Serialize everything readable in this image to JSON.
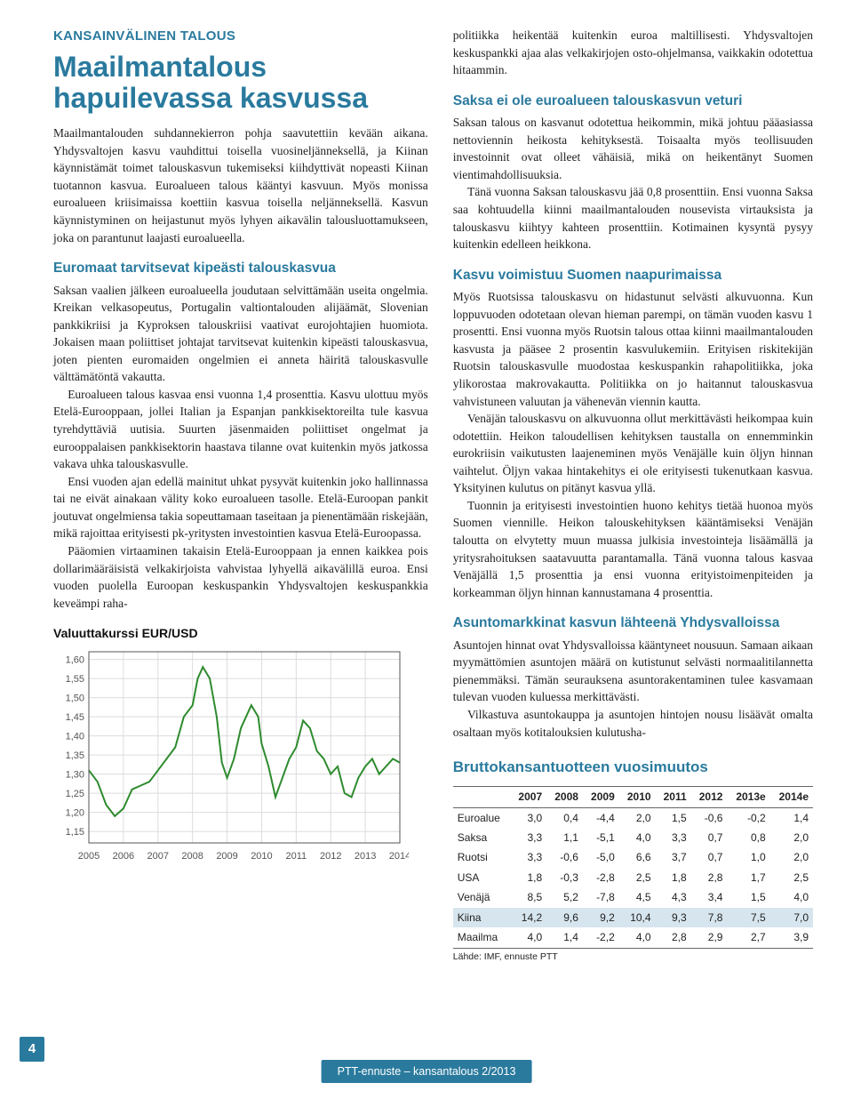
{
  "section_label": "KANSAINVÄLINEN TALOUS",
  "main_title_line1": "Maailmantalous",
  "main_title_line2": "hapuilevassa kasvussa",
  "left": {
    "p1": "Maailmantalouden suhdannekierron pohja saavutettiin kevään aikana. Yhdysvaltojen kasvu vauhdittui toisella vuosineljänneksellä, ja Kiinan käynnistämät toimet talouskasvun tukemiseksi kiihdyttivät nopeasti Kiinan tuotannon kasvua. Euroalueen talous kääntyi kasvuun. Myös monissa euroalueen kriisimaissa koettiin kasvua toisella neljänneksellä. Kasvun käynnistyminen on heijastunut myös lyhyen aikavälin talousluottamukseen, joka on parantunut laajasti euroalueella.",
    "h2_1": "Euromaat tarvitsevat kipeästi talouskasvua",
    "p2": "Saksan vaalien jälkeen euroalueella joudutaan selvittämään useita ongelmia. Kreikan velkasopeutus, Portugalin valtiontalouden alijäämät, Slovenian pankkikriisi ja Kyproksen talouskriisi vaativat eurojohtajien huomiota. Jokaisen maan poliittiset johtajat tarvitsevat kuitenkin kipeästi talouskasvua, joten pienten euromaiden ongelmien ei anneta häiritä talouskasvulle välttämätöntä vakautta.",
    "p3": "Euroalueen talous kasvaa ensi vuonna 1,4 prosenttia. Kasvu ulottuu myös Etelä-Eurooppaan, jollei Italian ja Espanjan pankkisektoreilta tule kasvua tyrehdyttäviä uutisia. Suurten jäsenmaiden poliittiset ongelmat ja eurooppalaisen pankkisektorin haastava tilanne ovat kuitenkin myös jatkossa vakava uhka talouskasvulle.",
    "p4": "Ensi vuoden ajan edellä mainitut uhkat pysyvät kuitenkin joko hallinnassa tai ne eivät ainakaan välity koko euroalueen tasolle. Etelä-Euroopan pankit joutuvat ongelmiensa takia sopeuttamaan taseitaan ja pienentämään riskejään, mikä rajoittaa erityisesti pk-yritysten investointien kasvua Etelä-Euroopassa.",
    "p5": "Pääomien virtaaminen takaisin Etelä-Eurooppaan ja ennen kaikkea pois dollarimääräisistä velkakirjoista vahvistaa lyhyellä aikavälillä euroa. Ensi vuoden puolella Euroopan keskuspankin Yhdysvaltojen keskuspankkia keveämpi raha-"
  },
  "right": {
    "p0": "politiikka heikentää kuitenkin euroa maltillisesti. Yhdysvaltojen keskuspankki ajaa alas velkakirjojen osto-ohjelmansa, vaikkakin odotettua hitaammin.",
    "h2_1": "Saksa ei ole euroalueen talouskasvun veturi",
    "p1": "Saksan talous on kasvanut odotettua heikommin, mikä johtuu pääasiassa nettoviennin heikosta kehityksestä. Toisaalta myös teollisuuden investoinnit ovat olleet vähäisiä, mikä on heikentänyt Suomen vientimahdollisuuksia.",
    "p2": "Tänä vuonna Saksan talouskasvu jää 0,8 prosenttiin. Ensi vuonna Saksa saa kohtuudella kiinni maailmantalouden nousevista virtauksista ja talouskasvu kiihtyy kahteen prosenttiin. Kotimainen kysyntä pysyy kuitenkin edelleen heikkona.",
    "h2_2": "Kasvu voimistuu Suomen naapurimaissa",
    "p3": "Myös Ruotsissa talouskasvu on hidastunut selvästi alkuvuonna. Kun loppuvuoden odotetaan olevan hieman parempi, on tämän vuoden kasvu 1 prosentti. Ensi vuonna myös Ruotsin talous ottaa kiinni maailmantalouden kasvusta ja pääsee 2 prosentin kasvulukemiin. Erityisen riskitekijän Ruotsin talouskasvulle muodostaa keskuspankin rahapolitiikka, joka ylikorostaa makrovakautta. Politiikka on jo haitannut talouskasvua vahvistuneen valuutan ja vähenevän viennin kautta.",
    "p4": "Venäjän talouskasvu on alkuvuonna ollut merkittävästi heikompaa kuin odotettiin. Heikon taloudellisen kehityksen taustalla on ennemminkin eurokriisin vaikutusten laajeneminen myös Venäjälle kuin öljyn hinnan vaihtelut. Öljyn vakaa hintakehitys ei ole erityisesti tukenutkaan kasvua. Yksityinen kulutus on pitänyt kasvua yllä.",
    "p5": "Tuonnin ja erityisesti investointien huono kehitys tietää huonoa myös Suomen viennille. Heikon talouskehityksen kääntämiseksi Venäjän taloutta on elvytetty muun muassa julkisia investointeja lisäämällä ja yritysrahoituksen saatavuutta parantamalla. Tänä vuonna talous kasvaa Venäjällä 1,5 prosenttia ja ensi vuonna erityistoimenpiteiden ja korkeamman öljyn hinnan kannustamana 4 prosenttia.",
    "h2_3": "Asuntomarkkinat kasvun lähteenä Yhdysvalloissa",
    "p6": "Asuntojen hinnat ovat Yhdysvalloissa kääntyneet nousuun. Samaan aikaan myymättömien asuntojen määrä on kutistunut selvästi normaalitilannetta pienemmäksi. Tämän seurauksena asuntorakentaminen tulee kasvamaan tulevan vuoden kuluessa merkittävästi.",
    "p7": "Vilkastuva asuntokauppa ja asuntojen hintojen nousu lisäävät omalta osaltaan myös kotitalouksien kulutusha-"
  },
  "chart": {
    "title": "Valuuttakurssi EUR/USD",
    "type": "line",
    "xlabels": [
      "2005",
      "2006",
      "2007",
      "2008",
      "2009",
      "2010",
      "2011",
      "2012",
      "2013",
      "2014"
    ],
    "ylim": [
      1.12,
      1.62
    ],
    "yticks": [
      1.15,
      1.2,
      1.25,
      1.3,
      1.35,
      1.4,
      1.45,
      1.5,
      1.55,
      1.6
    ],
    "line_color": "#2e8b2e",
    "line_width": 2,
    "grid_color": "#dcdcdc",
    "tick_color": "#555555",
    "background_color": "#ffffff",
    "label_fontsize": 11,
    "title_fontsize": 14,
    "series": [
      {
        "x": 0.0,
        "y": 1.31
      },
      {
        "x": 0.25,
        "y": 1.28
      },
      {
        "x": 0.5,
        "y": 1.22
      },
      {
        "x": 0.75,
        "y": 1.19
      },
      {
        "x": 1.0,
        "y": 1.21
      },
      {
        "x": 1.25,
        "y": 1.26
      },
      {
        "x": 1.5,
        "y": 1.27
      },
      {
        "x": 1.75,
        "y": 1.28
      },
      {
        "x": 2.0,
        "y": 1.31
      },
      {
        "x": 2.25,
        "y": 1.34
      },
      {
        "x": 2.5,
        "y": 1.37
      },
      {
        "x": 2.75,
        "y": 1.45
      },
      {
        "x": 3.0,
        "y": 1.48
      },
      {
        "x": 3.15,
        "y": 1.55
      },
      {
        "x": 3.3,
        "y": 1.58
      },
      {
        "x": 3.5,
        "y": 1.55
      },
      {
        "x": 3.7,
        "y": 1.45
      },
      {
        "x": 3.85,
        "y": 1.33
      },
      {
        "x": 4.0,
        "y": 1.29
      },
      {
        "x": 4.2,
        "y": 1.34
      },
      {
        "x": 4.4,
        "y": 1.42
      },
      {
        "x": 4.7,
        "y": 1.48
      },
      {
        "x": 4.9,
        "y": 1.45
      },
      {
        "x": 5.0,
        "y": 1.38
      },
      {
        "x": 5.2,
        "y": 1.32
      },
      {
        "x": 5.4,
        "y": 1.24
      },
      {
        "x": 5.6,
        "y": 1.29
      },
      {
        "x": 5.8,
        "y": 1.34
      },
      {
        "x": 6.0,
        "y": 1.37
      },
      {
        "x": 6.2,
        "y": 1.44
      },
      {
        "x": 6.4,
        "y": 1.42
      },
      {
        "x": 6.6,
        "y": 1.36
      },
      {
        "x": 6.8,
        "y": 1.34
      },
      {
        "x": 7.0,
        "y": 1.3
      },
      {
        "x": 7.2,
        "y": 1.32
      },
      {
        "x": 7.4,
        "y": 1.25
      },
      {
        "x": 7.6,
        "y": 1.24
      },
      {
        "x": 7.8,
        "y": 1.29
      },
      {
        "x": 8.0,
        "y": 1.32
      },
      {
        "x": 8.2,
        "y": 1.34
      },
      {
        "x": 8.4,
        "y": 1.3
      },
      {
        "x": 8.6,
        "y": 1.32
      },
      {
        "x": 8.8,
        "y": 1.34
      },
      {
        "x": 9.0,
        "y": 1.33
      }
    ]
  },
  "gdp_table": {
    "title": "Bruttokansantuotteen vuosimuutos",
    "columns": [
      "",
      "2007",
      "2008",
      "2009",
      "2010",
      "2011",
      "2012",
      "2013e",
      "2014e"
    ],
    "rows": [
      [
        "Euroalue",
        "3,0",
        "0,4",
        "-4,4",
        "2,0",
        "1,5",
        "-0,6",
        "-0,2",
        "1,4"
      ],
      [
        "Saksa",
        "3,3",
        "1,1",
        "-5,1",
        "4,0",
        "3,3",
        "0,7",
        "0,8",
        "2,0"
      ],
      [
        "Ruotsi",
        "3,3",
        "-0,6",
        "-5,0",
        "6,6",
        "3,7",
        "0,7",
        "1,0",
        "2,0"
      ],
      [
        "USA",
        "1,8",
        "-0,3",
        "-2,8",
        "2,5",
        "1,8",
        "2,8",
        "1,7",
        "2,5"
      ],
      [
        "Venäjä",
        "8,5",
        "5,2",
        "-7,8",
        "4,5",
        "4,3",
        "3,4",
        "1,5",
        "4,0"
      ],
      [
        "Kiina",
        "14,2",
        "9,6",
        "9,2",
        "10,4",
        "9,3",
        "7,8",
        "7,5",
        "7,0"
      ],
      [
        "Maailma",
        "4,0",
        "1,4",
        "-2,2",
        "4,0",
        "2,8",
        "2,9",
        "2,7",
        "3,9"
      ]
    ],
    "header_border_color": "#666666",
    "highlight_row_index": 5,
    "highlight_bg": "#d6e5ee",
    "font_size": 12,
    "source": "Lähde: IMF, ennuste PTT"
  },
  "page_number": "4",
  "footer_text": "PTT-ennuste – kansantalous 2/2013"
}
